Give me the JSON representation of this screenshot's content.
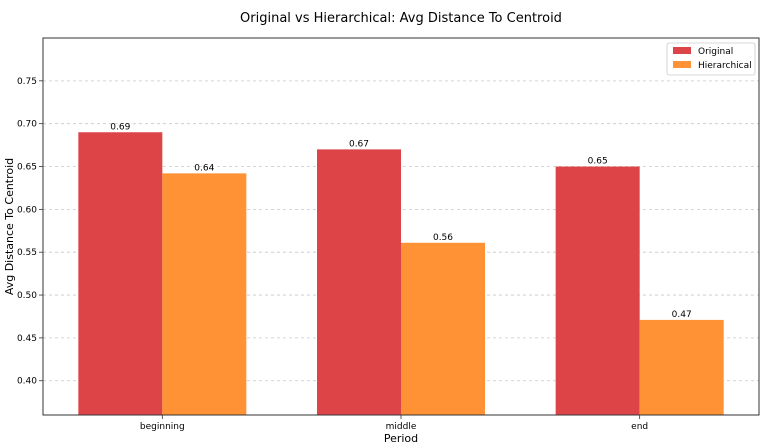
{
  "chart_data": {
    "type": "bar",
    "title": "Original vs Hierarchical: Avg Distance To Centroid",
    "xlabel": "Period",
    "ylabel": "Avg Distance To Centroid",
    "categories": [
      "beginning",
      "middle",
      "end"
    ],
    "series": [
      {
        "name": "Original",
        "values": [
          0.69,
          0.67,
          0.65
        ],
        "data_labels": [
          "0.69",
          "0.67",
          "0.65"
        ],
        "color": "#dc4448"
      },
      {
        "name": "Hierarchical",
        "values": [
          0.642,
          0.561,
          0.471
        ],
        "data_labels": [
          "0.64",
          "0.56",
          "0.47"
        ],
        "color": "#fe9234"
      }
    ],
    "ylim": [
      0.36,
      0.8
    ],
    "yticks": [
      0.4,
      0.45,
      0.5,
      0.55,
      0.6,
      0.65,
      0.7,
      0.75
    ],
    "ytick_labels": [
      "0.40",
      "0.45",
      "0.50",
      "0.55",
      "0.60",
      "0.65",
      "0.70",
      "0.75"
    ],
    "grid": {
      "y": true,
      "x": false,
      "style": "dashed"
    },
    "legend": {
      "placement": "top-right"
    }
  }
}
